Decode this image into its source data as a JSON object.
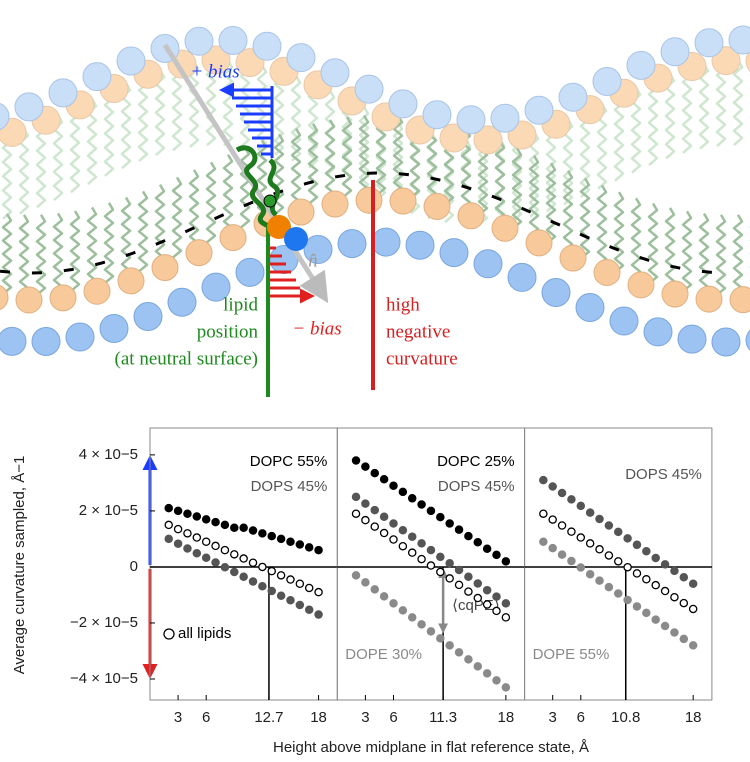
{
  "diagram": {
    "plus_bias": "+ bias",
    "minus_bias": "− bias",
    "normal": "n̂",
    "lipid_label": [
      "lipid",
      "position",
      "(at neutral surface)"
    ],
    "curvature_label": [
      "high",
      "negative",
      "curvature"
    ]
  },
  "chart_data": [
    {
      "type": "scatter",
      "ylabel": "Average curvature sampled, Å−1",
      "x": [
        2,
        3,
        4,
        5,
        6,
        7,
        8,
        9,
        10,
        11,
        12,
        13,
        14,
        15,
        16,
        17,
        18
      ],
      "xlim": [
        0,
        20
      ],
      "xticks": [
        3,
        6,
        12.7,
        18
      ],
      "ylim": [
        -4.75e-05,
        4.96e-05
      ],
      "yticks": [
        {
          "value": 4e-05,
          "label": "4 × 10−5"
        },
        {
          "value": 2e-05,
          "label": "2 × 10−5"
        },
        0,
        {
          "value": -2e-05,
          "label": "−2 × 10−5"
        },
        {
          "value": -4e-05,
          "label": "−4 × 10−5"
        }
      ],
      "hline": 0,
      "vline": 12.7,
      "series": [
        {
          "name": "DOPC 55%",
          "color": "#000000",
          "marker": "filled",
          "values": [
            2.1e-05,
            2e-05,
            1.9e-05,
            1.8e-05,
            1.7e-05,
            1.6e-05,
            1.5e-05,
            1.4e-05,
            1.4e-05,
            1.3e-05,
            1.2e-05,
            1.1e-05,
            1e-05,
            9e-06,
            8e-06,
            7e-06,
            6e-06
          ]
        },
        {
          "name": "all lipids",
          "color": "#000000",
          "marker": "open",
          "values": [
            1.5e-05,
            1.35e-05,
            1.2e-05,
            1.05e-05,
            9e-06,
            7.5e-06,
            6e-06,
            4.5e-06,
            3e-06,
            1.5e-06,
            0,
            -1.5e-06,
            -3e-06,
            -4.5e-06,
            -6e-06,
            -7.5e-06,
            -9e-06
          ]
        },
        {
          "name": "DOPS 45%",
          "color": "#555555",
          "marker": "filled",
          "values": [
            1e-05,
            8.3e-06,
            6.6e-06,
            4.9e-06,
            3.3e-06,
            1.6e-06,
            -1e-07,
            -1.8e-06,
            -3.5e-06,
            -5.2e-06,
            -6.9e-06,
            -8.6e-06,
            -1.03e-05,
            -1.19e-05,
            -1.36e-05,
            -1.53e-05,
            -1.7e-05
          ]
        }
      ]
    },
    {
      "type": "scatter",
      "xlabel": "Height above midplane in flat reference state, Å",
      "x": [
        2,
        3,
        4,
        5,
        6,
        7,
        8,
        9,
        10,
        11,
        12,
        13,
        14,
        15,
        16,
        17,
        18
      ],
      "xlim": [
        0,
        20
      ],
      "xticks": [
        3,
        6,
        11.3,
        18
      ],
      "ylim": [
        -4.75e-05,
        4.96e-05
      ],
      "hline": 0,
      "vline": 11.3,
      "annotation": "⟨cqPE⟩",
      "annotation_to": -2.3e-05,
      "series": [
        {
          "name": "DOPC 25%",
          "color": "#000000",
          "marker": "filled",
          "values": [
            3.8e-05,
            3.58e-05,
            3.35e-05,
            3.13e-05,
            2.9e-05,
            2.68e-05,
            2.45e-05,
            2.23e-05,
            2e-05,
            1.78e-05,
            1.55e-05,
            1.33e-05,
            1.1e-05,
            8.8e-06,
            6.5e-06,
            4.3e-06,
            2e-06
          ]
        },
        {
          "color": "#000000",
          "marker": "open",
          "values": [
            1.9e-05,
            1.67e-05,
            1.44e-05,
            1.21e-05,
            9.8e-06,
            7.4e-06,
            5.1e-06,
            2.8e-06,
            5e-07,
            -1.8e-06,
            -4.1e-06,
            -6.4e-06,
            -8.8e-06,
            -1.11e-05,
            -1.34e-05,
            -1.57e-05,
            -1.8e-05
          ]
        },
        {
          "name": "DOPS 45%",
          "color": "#555555",
          "marker": "filled",
          "values": [
            2.5e-05,
            2.26e-05,
            2.03e-05,
            1.79e-05,
            1.55e-05,
            1.31e-05,
            1.08e-05,
            8.4e-06,
            6e-06,
            3.6e-06,
            1.3e-06,
            -1.1e-06,
            -3.5e-06,
            -5.9e-06,
            -8.3e-06,
            -1.06e-05,
            -1.3e-05
          ]
        },
        {
          "name": "DOPE 30%",
          "color": "#8a8a8a",
          "marker": "filled",
          "values": [
            -3e-06,
            -5.5e-06,
            -8e-06,
            -1.05e-05,
            -1.3e-05,
            -1.55e-05,
            -1.8e-05,
            -2.05e-05,
            -2.3e-05,
            -2.55e-05,
            -2.8e-05,
            -3.05e-05,
            -3.3e-05,
            -3.55e-05,
            -3.8e-05,
            -4.05e-05,
            -4.3e-05
          ]
        }
      ]
    },
    {
      "type": "scatter",
      "x": [
        2,
        3,
        4,
        5,
        6,
        7,
        8,
        9,
        10,
        11,
        12,
        13,
        14,
        15,
        16,
        17,
        18
      ],
      "xlim": [
        0,
        20
      ],
      "xticks": [
        3,
        6,
        10.8,
        18
      ],
      "ylim": [
        -4.75e-05,
        4.96e-05
      ],
      "hline": 0,
      "vline": 10.8,
      "series": [
        {
          "name": "DOPS 45%",
          "color": "#555555",
          "marker": "filled",
          "values": [
            3.1e-05,
            2.87e-05,
            2.64e-05,
            2.41e-05,
            2.18e-05,
            1.94e-05,
            1.71e-05,
            1.48e-05,
            1.25e-05,
            1.02e-05,
            7.9e-06,
            5.6e-06,
            3.2e-06,
            9e-07,
            -1.4e-06,
            -3.7e-06,
            -6e-06
          ]
        },
        {
          "color": "#000000",
          "marker": "open",
          "values": [
            1.9e-05,
            1.69e-05,
            1.48e-05,
            1.26e-05,
            1.05e-05,
            8.4e-06,
            6.3e-06,
            4.1e-06,
            2e-06,
            -1e-07,
            -2.3e-06,
            -4.4e-06,
            -6.5e-06,
            -8.6e-06,
            -1.08e-05,
            -1.29e-05,
            -1.5e-05
          ]
        },
        {
          "name": "DOPE 55%",
          "color": "#8a8a8a",
          "marker": "filled",
          "values": [
            9e-06,
            6.7e-06,
            4.4e-06,
            2.1e-06,
            -2e-07,
            -2.6e-06,
            -4.9e-06,
            -7.2e-06,
            -9.5e-06,
            -1.18e-05,
            -1.41e-05,
            -1.64e-05,
            -1.88e-05,
            -2.11e-05,
            -2.34e-05,
            -2.57e-05,
            -2.8e-05
          ]
        }
      ]
    }
  ]
}
